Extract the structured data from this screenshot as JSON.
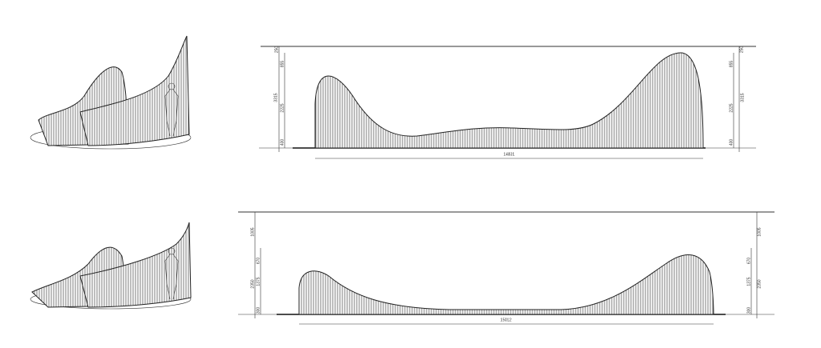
{
  "elevations": [
    {
      "dims_left": [
        "250",
        "855",
        "3315",
        "2225",
        "400"
      ],
      "dims_right": [
        "250",
        "855",
        "3315",
        "2225",
        "400"
      ],
      "length": "14831"
    },
    {
      "dims_left": [
        "1005",
        "670",
        "2350",
        "1375",
        "300"
      ],
      "dims_right": [
        "1005",
        "670",
        "2350",
        "1375",
        "300"
      ],
      "length": "15012"
    }
  ]
}
